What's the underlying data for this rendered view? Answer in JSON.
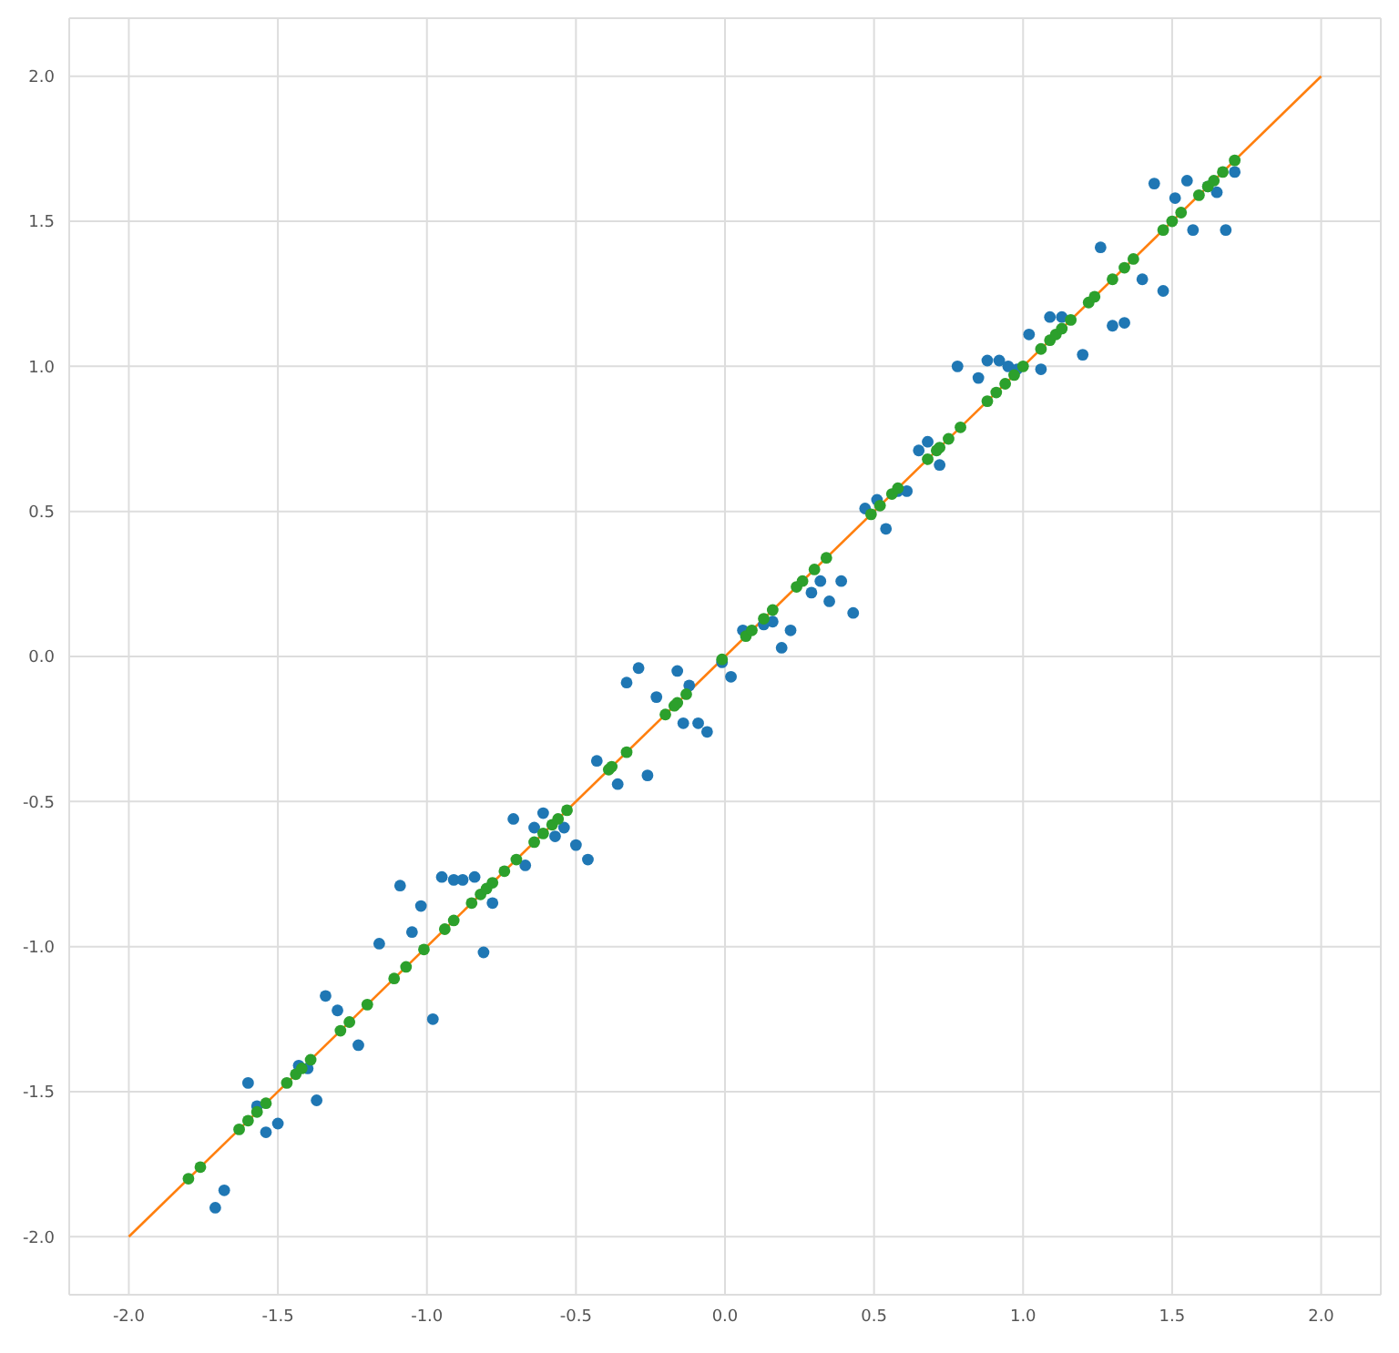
{
  "chart_data": {
    "type": "scatter",
    "xlim": [
      -2.2,
      2.2
    ],
    "ylim": [
      -2.2,
      2.2
    ],
    "xticks": [
      {
        "value": -2,
        "label": "-2.0"
      },
      {
        "value": -1.5,
        "label": "-1.5"
      },
      {
        "value": -1,
        "label": "-1.0"
      },
      {
        "value": -0.5,
        "label": "-0.5"
      },
      {
        "value": 0,
        "label": "0.0"
      },
      {
        "value": 0.5,
        "label": "0.5"
      },
      {
        "value": 1,
        "label": "1.0"
      },
      {
        "value": 1.5,
        "label": "1.5"
      },
      {
        "value": 2,
        "label": "2.0"
      }
    ],
    "yticks": [
      {
        "value": -2,
        "label": "-2.0"
      },
      {
        "value": -1.5,
        "label": "-1.5"
      },
      {
        "value": -1,
        "label": "-1.0"
      },
      {
        "value": -0.5,
        "label": "-0.5"
      },
      {
        "value": 0,
        "label": "0.0"
      },
      {
        "value": 0.5,
        "label": "0.5"
      },
      {
        "value": 1,
        "label": "1.0"
      },
      {
        "value": 1.5,
        "label": "1.5"
      },
      {
        "value": 2,
        "label": "2.0"
      }
    ],
    "grid": true,
    "marker": "circle",
    "legend": false,
    "series": [
      {
        "color": "#1f77b4",
        "x": [
          -1.71,
          -1.68,
          -1.6,
          -1.57,
          -1.54,
          -1.5,
          -1.43,
          -1.4,
          -1.37,
          -1.34,
          -1.3,
          -1.23,
          -1.16,
          -1.09,
          -1.05,
          -1.02,
          -0.98,
          -0.95,
          -0.91,
          -0.88,
          -0.84,
          -0.81,
          -0.78,
          -0.71,
          -0.67,
          -0.64,
          -0.61,
          -0.57,
          -0.54,
          -0.5,
          -0.46,
          -0.43,
          -0.36,
          -0.33,
          -0.29,
          -0.26,
          -0.23,
          -0.16,
          -0.14,
          -0.12,
          -0.09,
          -0.06,
          -0.01,
          0.02,
          0.06,
          0.13,
          0.16,
          0.19,
          0.22,
          0.29,
          0.32,
          0.35,
          0.39,
          0.43,
          0.47,
          0.51,
          0.54,
          0.58,
          0.61,
          0.65,
          0.68,
          0.72,
          0.78,
          0.85,
          0.88,
          0.92,
          0.95,
          0.98,
          1.02,
          1.06,
          1.09,
          1.13,
          1.2,
          1.26,
          1.3,
          1.34,
          1.4,
          1.44,
          1.47,
          1.51,
          1.55,
          1.57,
          1.62,
          1.65,
          1.68,
          1.71
        ],
        "values": [
          -1.9,
          -1.84,
          -1.47,
          -1.55,
          -1.64,
          -1.61,
          -1.41,
          -1.42,
          -1.53,
          -1.17,
          -1.22,
          -1.34,
          -0.99,
          -0.79,
          -0.95,
          -0.86,
          -1.25,
          -0.76,
          -0.77,
          -0.77,
          -0.76,
          -1.02,
          -0.85,
          -0.56,
          -0.72,
          -0.59,
          -0.54,
          -0.62,
          -0.59,
          -0.65,
          -0.7,
          -0.36,
          -0.44,
          -0.09,
          -0.04,
          -0.41,
          -0.14,
          -0.05,
          -0.23,
          -0.1,
          -0.23,
          -0.26,
          -0.02,
          -0.07,
          0.09,
          0.11,
          0.12,
          0.03,
          0.09,
          0.22,
          0.26,
          0.19,
          0.26,
          0.15,
          0.51,
          0.54,
          0.44,
          0.57,
          0.57,
          0.71,
          0.74,
          0.66,
          1.0,
          0.96,
          1.02,
          1.02,
          1.0,
          0.99,
          1.11,
          0.99,
          1.17,
          1.17,
          1.04,
          1.41,
          1.14,
          1.15,
          1.3,
          1.63,
          1.26,
          1.58,
          1.64,
          1.47,
          1.62,
          1.6,
          1.47,
          1.67
        ]
      },
      {
        "type": "line",
        "color": "#ff7f0e",
        "marker": "none",
        "x": [
          -2,
          2
        ],
        "values": [
          -2,
          2
        ]
      },
      {
        "color": "#2ca02c",
        "x": [
          -1.8,
          -1.76,
          -1.63,
          -1.6,
          -1.57,
          -1.54,
          -1.47,
          -1.44,
          -1.42,
          -1.39,
          -1.29,
          -1.26,
          -1.2,
          -1.11,
          -1.07,
          -1.01,
          -0.94,
          -0.91,
          -0.85,
          -0.82,
          -0.8,
          -0.78,
          -0.74,
          -0.7,
          -0.64,
          -0.61,
          -0.58,
          -0.56,
          -0.53,
          -0.39,
          -0.38,
          -0.33,
          -0.2,
          -0.17,
          -0.16,
          -0.13,
          -0.01,
          0.07,
          0.09,
          0.13,
          0.16,
          0.24,
          0.26,
          0.3,
          0.34,
          0.49,
          0.52,
          0.56,
          0.58,
          0.68,
          0.71,
          0.72,
          0.75,
          0.79,
          0.88,
          0.91,
          0.94,
          0.97,
          1.0,
          1.06,
          1.09,
          1.11,
          1.13,
          1.16,
          1.22,
          1.24,
          1.3,
          1.34,
          1.37,
          1.47,
          1.5,
          1.53,
          1.59,
          1.62,
          1.64,
          1.67,
          1.71
        ],
        "values": [
          -1.8,
          -1.76,
          -1.63,
          -1.6,
          -1.57,
          -1.54,
          -1.47,
          -1.44,
          -1.42,
          -1.39,
          -1.29,
          -1.26,
          -1.2,
          -1.11,
          -1.07,
          -1.01,
          -0.94,
          -0.91,
          -0.85,
          -0.82,
          -0.8,
          -0.78,
          -0.74,
          -0.7,
          -0.64,
          -0.61,
          -0.58,
          -0.56,
          -0.53,
          -0.39,
          -0.38,
          -0.33,
          -0.2,
          -0.17,
          -0.16,
          -0.13,
          -0.01,
          0.07,
          0.09,
          0.13,
          0.16,
          0.24,
          0.26,
          0.3,
          0.34,
          0.49,
          0.52,
          0.56,
          0.58,
          0.68,
          0.71,
          0.72,
          0.75,
          0.79,
          0.88,
          0.91,
          0.94,
          0.97,
          1.0,
          1.06,
          1.09,
          1.11,
          1.13,
          1.16,
          1.22,
          1.24,
          1.3,
          1.34,
          1.37,
          1.47,
          1.5,
          1.53,
          1.59,
          1.62,
          1.64,
          1.67,
          1.71
        ]
      }
    ]
  }
}
